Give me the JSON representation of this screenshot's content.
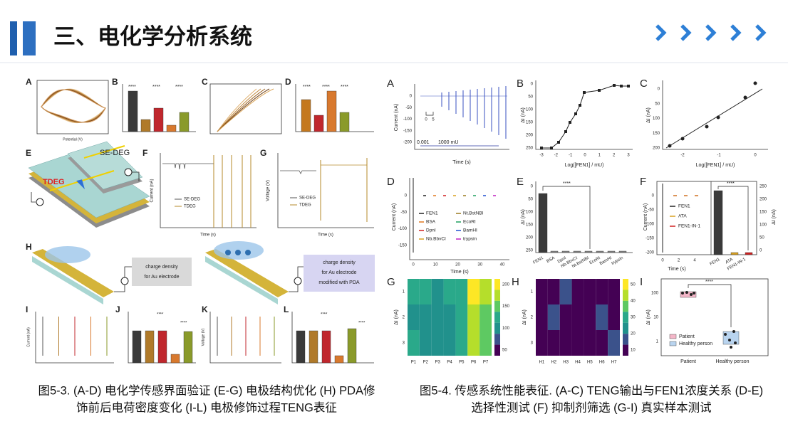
{
  "header": {
    "title": "三、电化学分析系统"
  },
  "left_figure": {
    "panel_labels": [
      "A",
      "B",
      "C",
      "D",
      "E",
      "F",
      "G",
      "H",
      "I",
      "J",
      "K",
      "L"
    ],
    "e_labels": [
      "SE-DEG",
      "TDEG"
    ],
    "f_legend": [
      "SE-DEG",
      "TDEG"
    ],
    "g_legend": [
      "SE-DEG",
      "TDEG"
    ],
    "axis": {
      "current": "Current (nA)",
      "voltage": "Voltage (V)",
      "time": "Time (s)",
      "potential": "Potential (V)"
    },
    "h_boxes": [
      [
        "charge density",
        "for Au electrode"
      ],
      [
        "charge density",
        "for Au electrode",
        "modified with PDA"
      ]
    ],
    "significance": "****",
    "caption": [
      "图5-3. (A-D) 电化学传感界面验证 (E-G) 电极结构优化 (H) PDA修",
      "饰前后电荷密度变化 (I-L) 电极修饰过程TENG表征"
    ]
  },
  "right_figure": {
    "panel_labels": [
      "A",
      "B",
      "C",
      "D",
      "E",
      "F",
      "G",
      "H",
      "I"
    ],
    "a": {
      "y_label": "Current (nA)",
      "x_label": "Time (s)",
      "yticks": [
        "0",
        "-50",
        "-100",
        "-150",
        "-200"
      ],
      "scale": [
        "0",
        "5"
      ],
      "range": [
        "0.001",
        "1000 mU"
      ]
    },
    "b": {
      "y_label": "ΔI (nA)",
      "x_label": "Log([FEN1] / mU)",
      "xticks": [
        "-3",
        "-2",
        "-1",
        "0",
        "1",
        "2",
        "3"
      ],
      "yticks": [
        "0",
        "50",
        "100",
        "150",
        "200",
        "250"
      ]
    },
    "c": {
      "y_label": "ΔI (nA)",
      "x_label": "Log([FEN1] / mU)",
      "xticks": [
        "-2",
        "-1",
        "0"
      ],
      "yticks": [
        "0",
        "50",
        "100",
        "150",
        "200"
      ]
    },
    "d": {
      "y_label": "Current (nA)",
      "x_label": "Time (s)",
      "legend": [
        "FEN1",
        "BSA",
        "DpnI",
        "Nb.BbvCI",
        "Nt.BstNBI",
        "EcoRI",
        "BamHI",
        "trypsin"
      ],
      "xticks": [
        "0",
        "10",
        "20",
        "30",
        "40"
      ],
      "yticks": [
        "0",
        "-50",
        "-100",
        "-150"
      ]
    },
    "e": {
      "y_label": "ΔI (nA)",
      "significance": "****",
      "categories": [
        "FEN1",
        "BSA",
        "DpnI",
        "Nb.BbvCI",
        "Nt.BstNBI",
        "EcoRI",
        "BamHI",
        "trypsin"
      ],
      "yticks": [
        "0",
        "50",
        "100",
        "150",
        "200",
        "250"
      ]
    },
    "f": {
      "y_label": "ΔI (nA)",
      "left_y_label": "Current (nA)",
      "x_label": "Time (s)",
      "legend": [
        "FEN1",
        "ATA",
        "FEN1-IN-1"
      ],
      "significance": "****",
      "yticks": [
        "0",
        "50",
        "100",
        "150",
        "200",
        "250"
      ],
      "left_yticks": [
        "0",
        "-50",
        "-100",
        "-150",
        "-200"
      ],
      "xticks": [
        "0",
        "2",
        "4"
      ],
      "categories": [
        "FEN1",
        "ATA",
        "FEN1-IN-1"
      ]
    },
    "g": {
      "y_label": "ΔI (nA)",
      "columns": [
        "P1",
        "P2",
        "P3",
        "P4",
        "P5",
        "P6",
        "P7"
      ],
      "rows": [
        "1",
        "2",
        "3"
      ],
      "colorbar": [
        "200",
        "150",
        "100",
        "50"
      ]
    },
    "h": {
      "y_label": "ΔI (nA)",
      "columns": [
        "H1",
        "H2",
        "H3",
        "H4",
        "H5",
        "H6",
        "H7"
      ],
      "rows": [
        "1",
        "2",
        "3"
      ],
      "colorbar": [
        "50",
        "40",
        "30",
        "20",
        "10"
      ]
    },
    "i": {
      "y_label": "ΔI (nA)",
      "significance": "****",
      "yticks": [
        "100",
        "10",
        "1"
      ],
      "legend": [
        "Patient",
        "Healthy person"
      ],
      "categories": [
        "Patient",
        "Healthy person"
      ]
    },
    "caption": [
      "图5-4. 传感系统性能表征. (A-C) TENG输出与FEN1浓度关系 (D-E)",
      "选择性测试 (F) 抑制剂筛选 (G-I) 真实样本测试"
    ]
  }
}
